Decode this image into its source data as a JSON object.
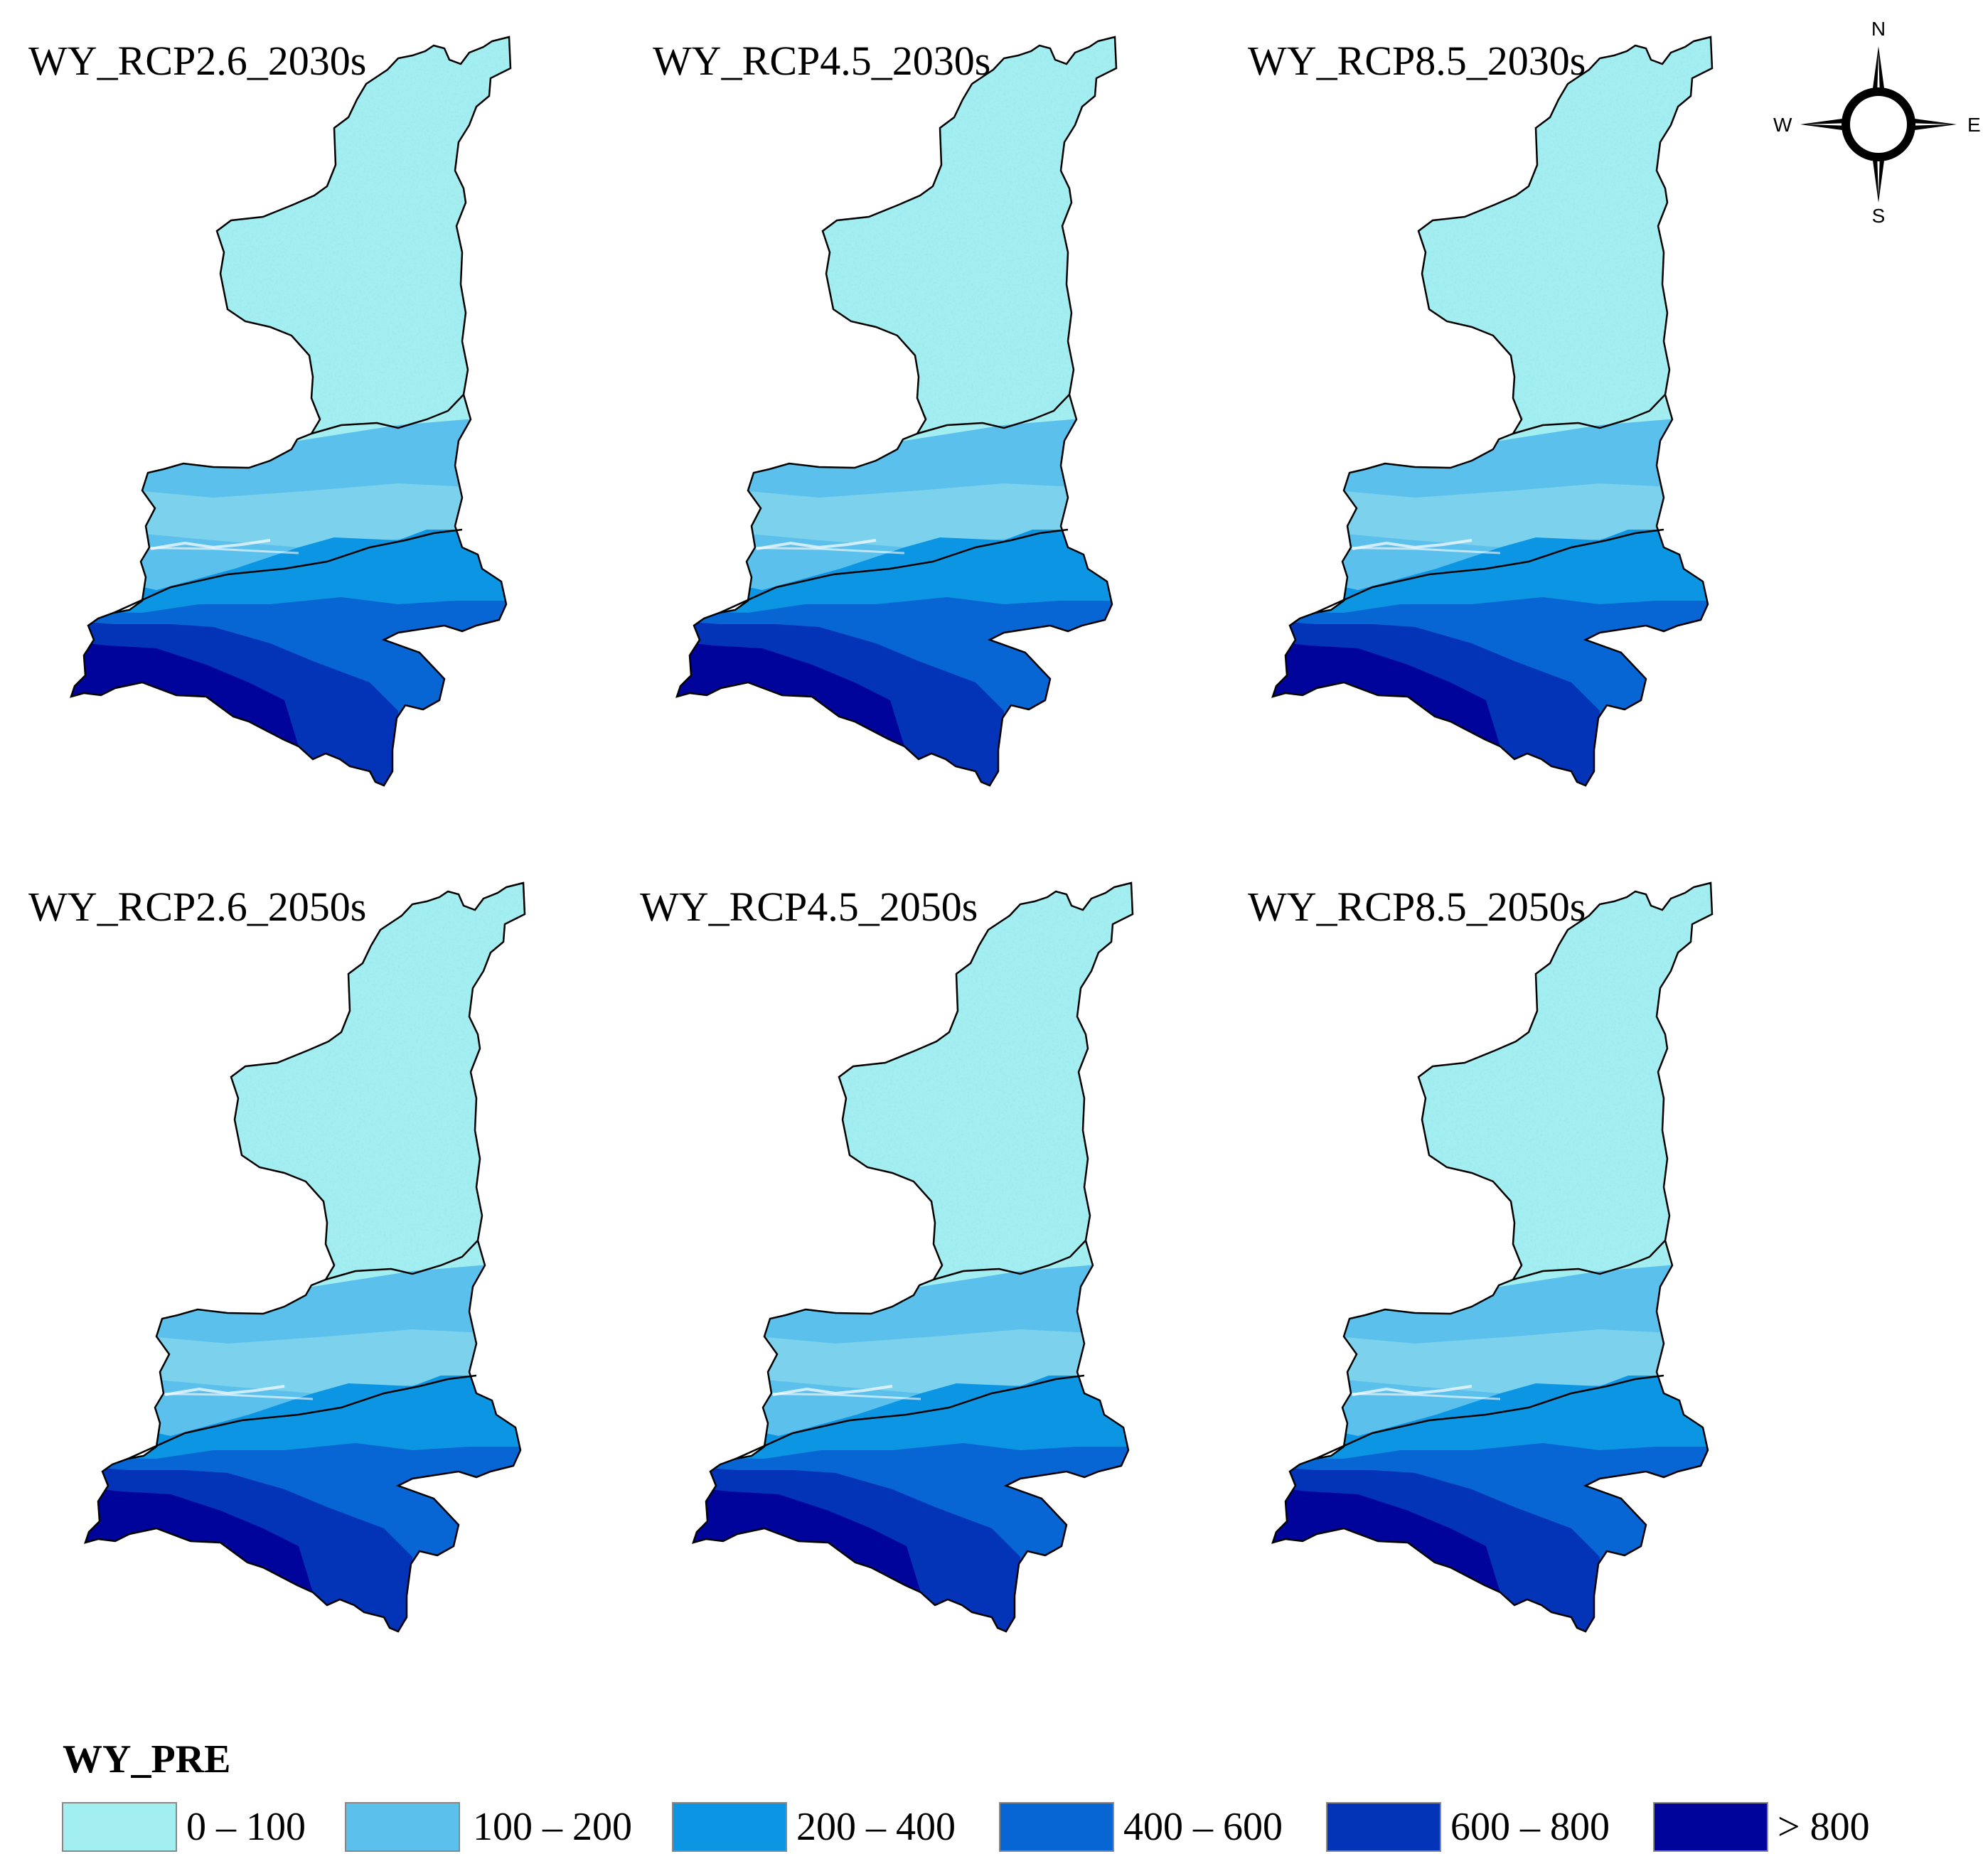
{
  "maps": [
    {
      "title": "WY_RCP2.6_2030s"
    },
    {
      "title": "WY_RCP4.5_2030s"
    },
    {
      "title": "WY_RCP8.5_2030s"
    },
    {
      "title": "WY_RCP2.6_2050s"
    },
    {
      "title": "WY_RCP4.5_2050s"
    },
    {
      "title": "WY_RCP8.5_2050s"
    }
  ],
  "compass": {
    "n": "N",
    "s": "S",
    "e": "E",
    "w": "W",
    "icon": "north-arrow-icon"
  },
  "legend": {
    "title": "WY_PRE",
    "classes": [
      {
        "label": "0 – 100",
        "color": "#a2eef0"
      },
      {
        "label": "100 – 200",
        "color": "#5bc0ec"
      },
      {
        "label": "200 – 400",
        "color": "#0c95e2"
      },
      {
        "label": "400 – 600",
        "color": "#0765d4"
      },
      {
        "label": "600 – 800",
        "color": "#0334b8"
      },
      {
        "label": "> 800",
        "color": "#01049a"
      }
    ]
  }
}
